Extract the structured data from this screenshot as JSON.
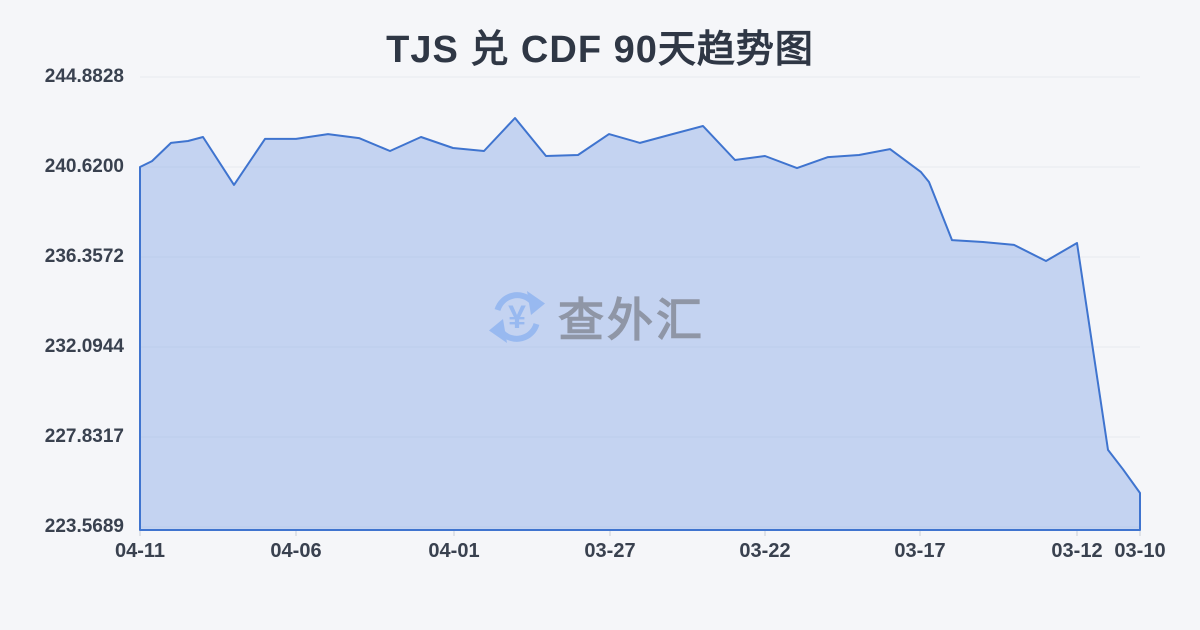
{
  "page": {
    "title": "TJS 兑 CDF 90天趋势图",
    "background": "#f5f6f9"
  },
  "watermark": {
    "icon": "currency-exchange-icon",
    "icon_symbol": "¥",
    "text": "查外汇",
    "icon_color": "#98b9f0",
    "text_color": "#8f96a6"
  },
  "chart_data": {
    "type": "area",
    "title": "TJS 兑 CDF 90天趋势图",
    "xlabel": "",
    "ylabel": "",
    "grid": true,
    "legend": false,
    "x_axis_direction": "dates-descend-left-to-right",
    "y_min": 223.5689,
    "y_max": 244.8828,
    "y_ticks": [
      "244.8828",
      "240.6200",
      "236.3572",
      "232.0944",
      "227.8317",
      "223.5689"
    ],
    "x_ticks": [
      {
        "label": "04-11",
        "pos": 0
      },
      {
        "label": "04-06",
        "pos": 15.6
      },
      {
        "label": "04-01",
        "pos": 31.4
      },
      {
        "label": "03-27",
        "pos": 47.0
      },
      {
        "label": "03-22",
        "pos": 62.5
      },
      {
        "label": "03-17",
        "pos": 78.0
      },
      {
        "label": "03-12",
        "pos": 93.7
      },
      {
        "label": "03-10",
        "pos": 100
      }
    ],
    "points": [
      [
        0.0,
        240.62
      ],
      [
        1.2,
        240.9
      ],
      [
        3.1,
        241.76
      ],
      [
        4.8,
        241.85
      ],
      [
        6.3,
        242.04
      ],
      [
        9.4,
        239.77
      ],
      [
        12.5,
        241.95
      ],
      [
        15.6,
        241.95
      ],
      [
        18.8,
        242.18
      ],
      [
        21.9,
        241.99
      ],
      [
        25.0,
        241.38
      ],
      [
        28.1,
        242.04
      ],
      [
        31.3,
        241.52
      ],
      [
        34.4,
        241.38
      ],
      [
        37.5,
        242.94
      ],
      [
        40.6,
        241.14
      ],
      [
        43.8,
        241.19
      ],
      [
        46.9,
        242.18
      ],
      [
        50.0,
        241.76
      ],
      [
        53.1,
        242.16
      ],
      [
        56.3,
        242.56
      ],
      [
        59.5,
        240.95
      ],
      [
        62.5,
        241.14
      ],
      [
        65.7,
        240.57
      ],
      [
        68.8,
        241.09
      ],
      [
        71.9,
        241.19
      ],
      [
        75.0,
        241.47
      ],
      [
        78.1,
        240.38
      ],
      [
        78.9,
        239.91
      ],
      [
        81.2,
        237.16
      ],
      [
        84.3,
        237.07
      ],
      [
        87.4,
        236.93
      ],
      [
        90.6,
        236.17
      ],
      [
        93.7,
        237.02
      ],
      [
        96.8,
        227.22
      ],
      [
        98.3,
        226.3
      ],
      [
        100.0,
        225.18
      ]
    ],
    "colors": {
      "line": "#3f74cf",
      "fill": "rgba(138,168,230,0.45)",
      "grid": "#e6e9ef",
      "axis_tick": "#c9ced8",
      "label": "#39414f",
      "title": "#2f3745"
    }
  }
}
